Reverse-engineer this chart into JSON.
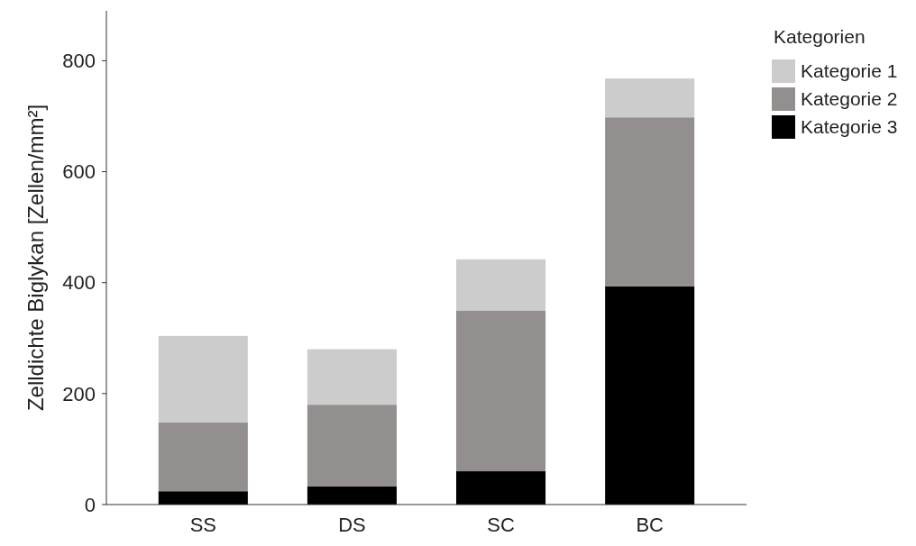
{
  "chart_data": {
    "type": "bar",
    "stacked": true,
    "ylabel": "Zelldichte Biglykan [Zellen/mm²]",
    "legend_title": "Kategorien",
    "legend": "top right",
    "grid": false,
    "categories": [
      "SS",
      "DS",
      "SC",
      "BC"
    ],
    "ylim": [
      0,
      890
    ],
    "yticks": [
      0,
      200,
      400,
      600,
      800
    ],
    "series": [
      {
        "name": "Kategorie 3",
        "color": "#000000",
        "values": [
          24,
          33,
          60,
          393
        ]
      },
      {
        "name": "Kategorie 2",
        "color": "#948f8f",
        "values": [
          124,
          147,
          290,
          305
        ]
      },
      {
        "name": "Kategorie 1",
        "color": "#cccccc",
        "values": [
          156,
          100,
          92,
          70
        ]
      }
    ]
  }
}
